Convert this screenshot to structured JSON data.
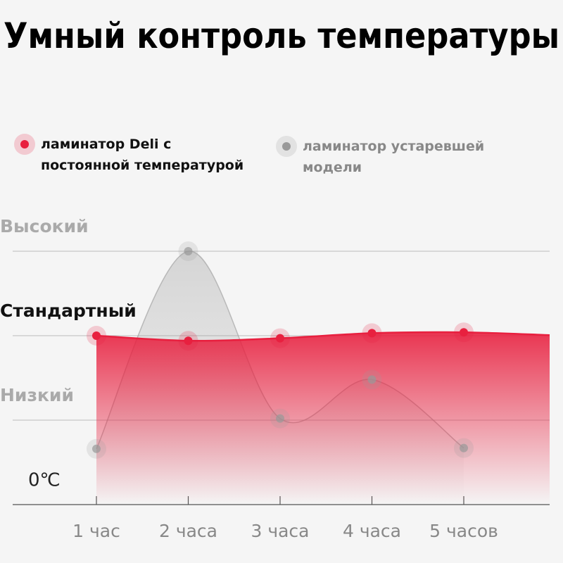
{
  "chart_data": {
    "type": "line",
    "title": "Умный контроль температуры",
    "categories": [
      "1 час",
      "2 часа",
      "3 часа",
      "4 часа",
      "5 часов"
    ],
    "series": [
      {
        "name": "ламинатор Deli с постоянной температурой",
        "color": "#e8203f",
        "values": [
          2.0,
          1.94,
          1.97,
          2.03,
          2.04
        ]
      },
      {
        "name": "ламинатор устаревшей модели",
        "color": "#999999",
        "values": [
          0.66,
          3.0,
          1.02,
          1.48,
          0.67
        ]
      }
    ],
    "ylim": [
      0,
      3
    ],
    "yticks": [
      {
        "value": 0,
        "label": "0℃"
      },
      {
        "value": 1,
        "label": "Низкий"
      },
      {
        "value": 2,
        "label": "Стандартный"
      },
      {
        "value": 3,
        "label": "Высокий"
      }
    ],
    "ytick_colors": [
      "#222222",
      "#aaaaaa",
      "#111111",
      "#aaaaaa"
    ],
    "grid": true
  }
}
